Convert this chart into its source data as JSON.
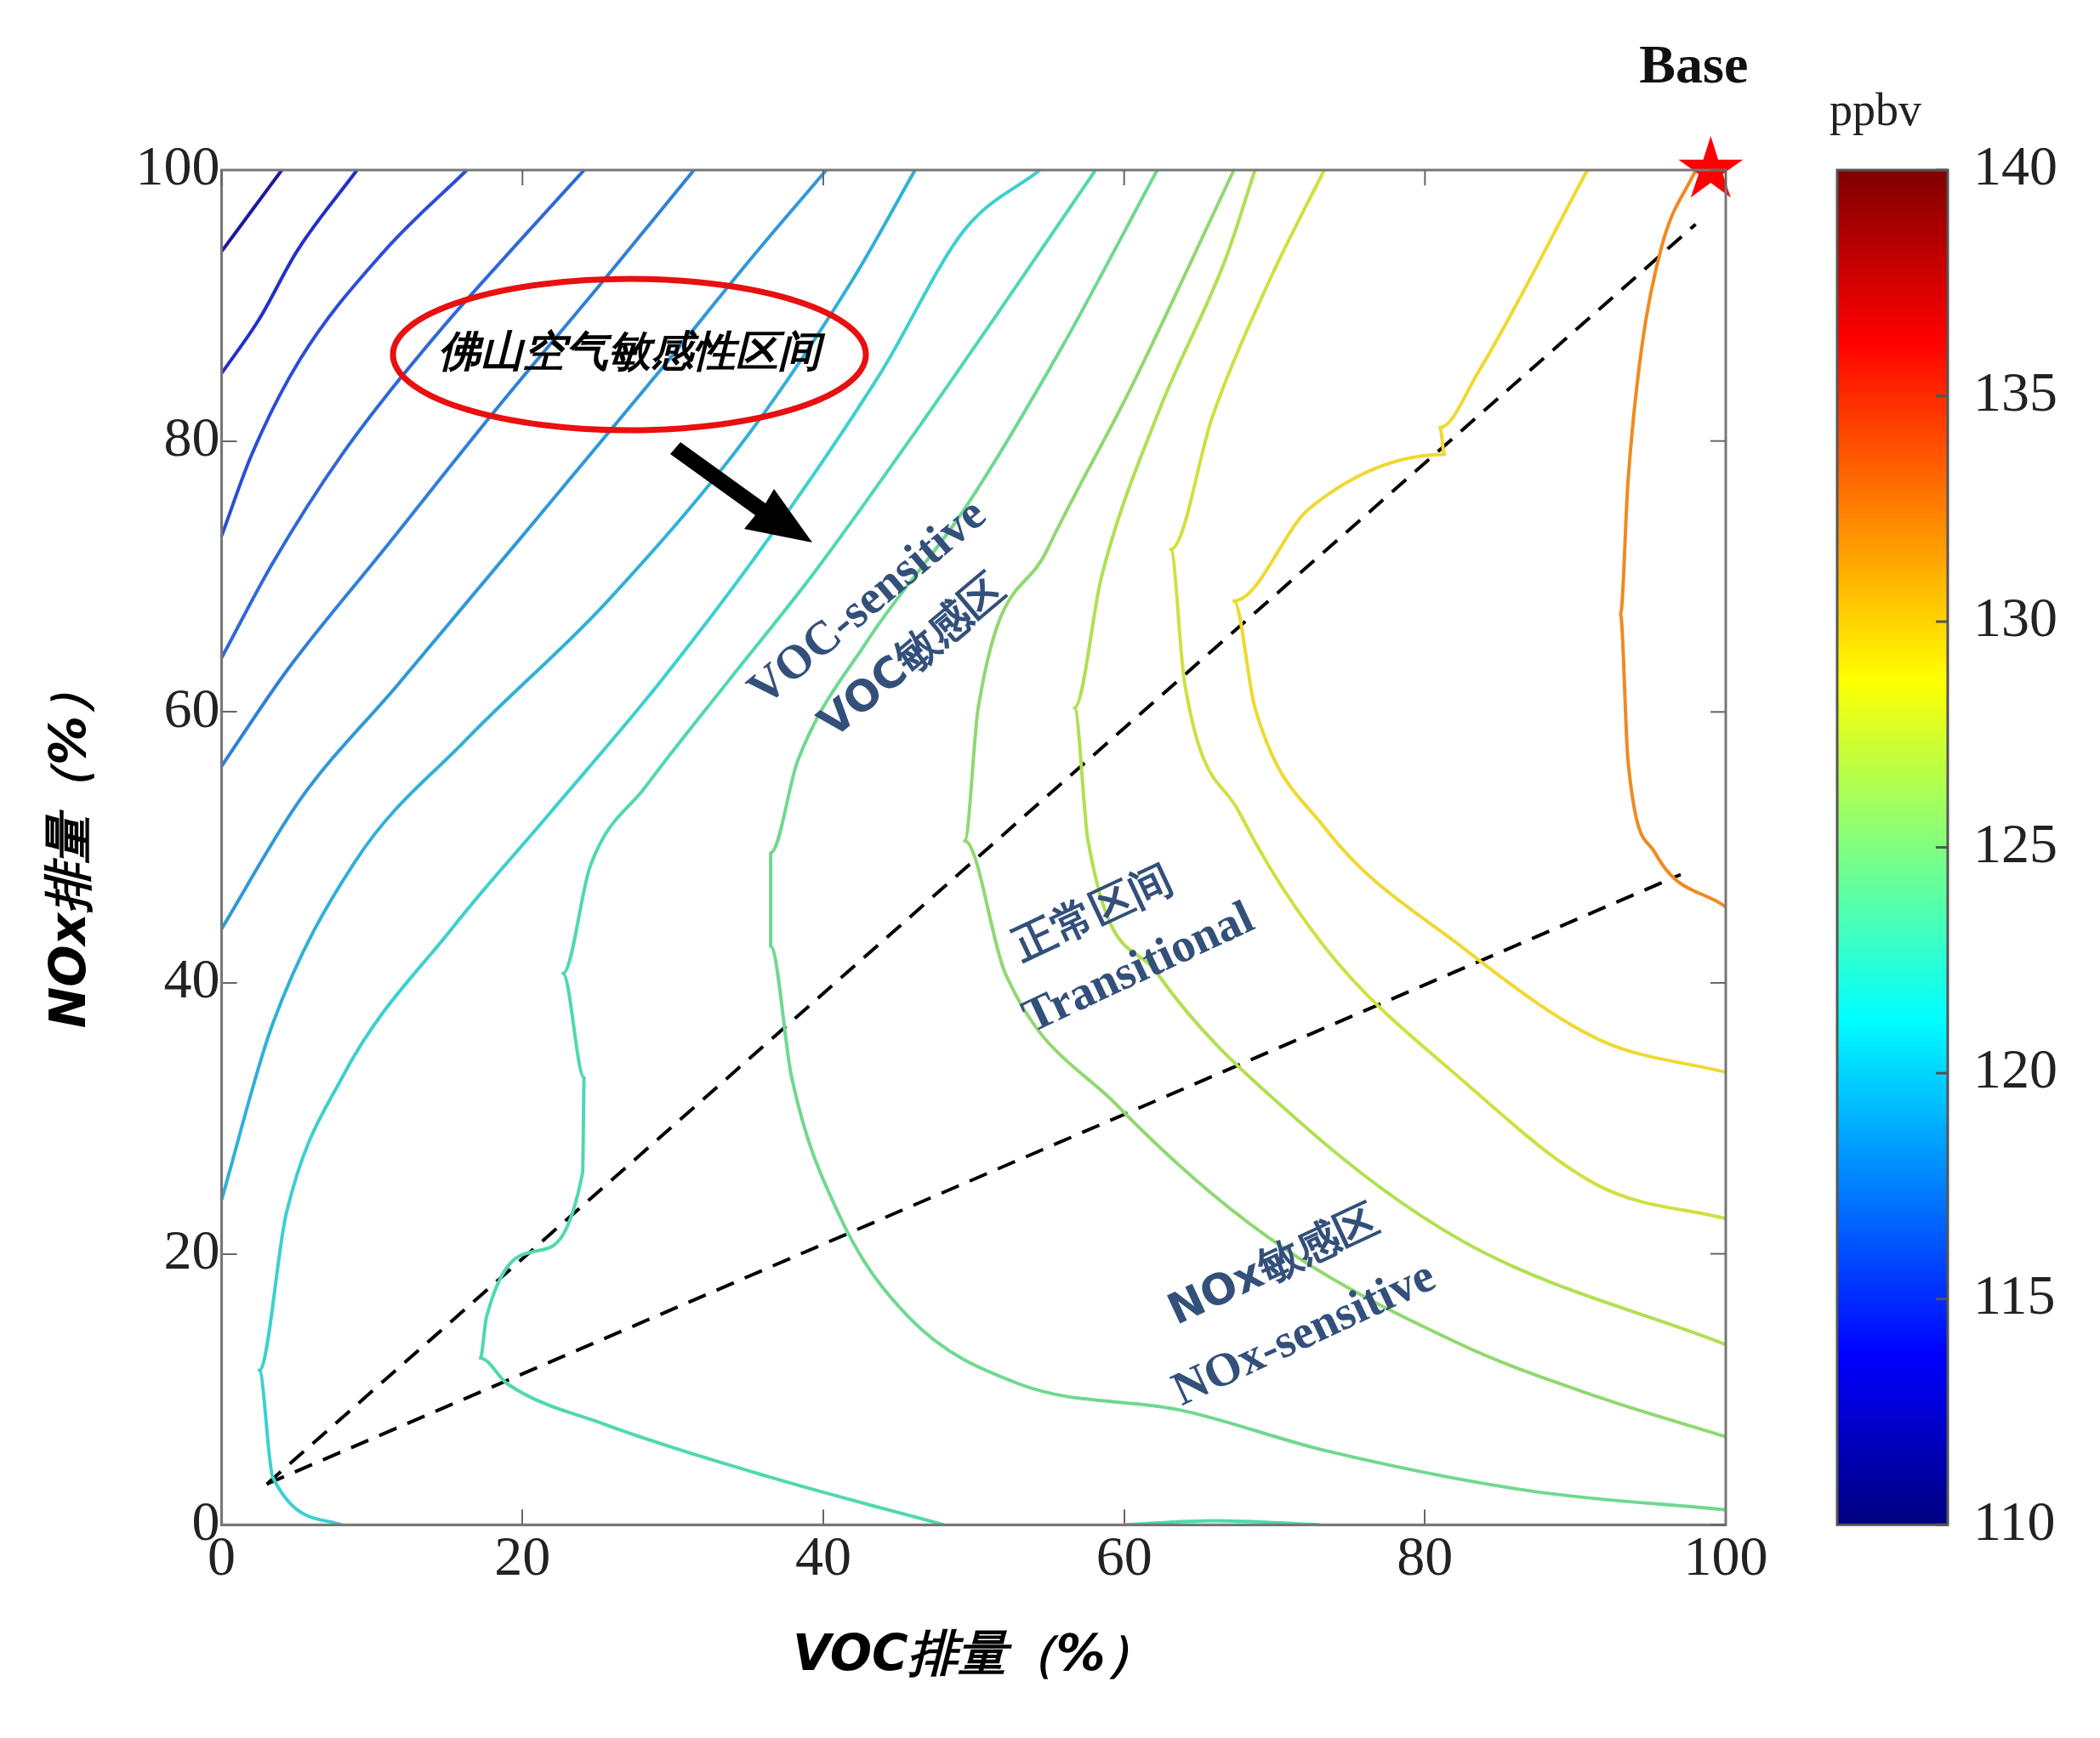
{
  "chart_data": {
    "type": "line",
    "xlabel": "VOC排量（%）",
    "ylabel": "NOx排量（%）",
    "xlim": [
      0,
      100
    ],
    "ylim": [
      0,
      100
    ],
    "xticks": [
      0,
      20,
      40,
      60,
      80,
      100
    ],
    "yticks": [
      0,
      20,
      40,
      60,
      80,
      100
    ],
    "grid": false,
    "legend": false,
    "marker": "none",
    "clim": [
      110,
      140
    ],
    "cticks": [
      110,
      115,
      120,
      125,
      130,
      135,
      140
    ],
    "clabel": "ppbv",
    "annotations": [
      {
        "text": "Base",
        "x": 99,
        "y": 100
      },
      "佛山空气敏感性区间",
      "VOC-sensitive",
      "VOC敏感区",
      "正常区间",
      "Transitional",
      "NOx敏感区",
      "NOx-sensitive"
    ],
    "series": [
      {
        "color": "#1a1aa0",
        "x": [
          0,
          2,
          4
        ],
        "values": [
          94,
          97,
          100
        ]
      },
      {
        "color": "#2230c8",
        "x": [
          0,
          2.5,
          5,
          9
        ],
        "values": [
          85,
          89,
          94,
          100
        ]
      },
      {
        "color": "#2a4ed8",
        "x": [
          0,
          2,
          5.2,
          10.8,
          16.3
        ],
        "values": [
          73,
          79,
          86,
          94,
          100
        ]
      },
      {
        "color": "#2f68d8",
        "x": [
          0,
          3.4,
          8,
          14.4,
          20,
          24.1
        ],
        "values": [
          64,
          71,
          79,
          88,
          95,
          100
        ]
      },
      {
        "color": "#3080d8",
        "x": [
          0,
          4.3,
          10.8,
          18,
          25.5,
          31.4
        ],
        "values": [
          56,
          63,
          72,
          82,
          92,
          100
        ]
      },
      {
        "color": "#3098d8",
        "x": [
          0,
          5.2,
          11.7,
          20,
          29,
          35.6,
          40.2
        ],
        "values": [
          44,
          53.5,
          62,
          73,
          85,
          94,
          100
        ]
      },
      {
        "color": "#30b0d8",
        "x": [
          0,
          3.4,
          8.9,
          16.3,
          25.5,
          34.7,
          42,
          46.1
        ],
        "values": [
          24,
          37,
          49,
          58,
          68,
          80,
          92,
          100
        ]
      },
      {
        "color": "#3cd0d0",
        "x": [
          8,
          3.4,
          2.5,
          4.3,
          8,
          15.3,
          21.8,
          29,
          36.5,
          43.8,
          49.4,
          54.4
        ],
        "values": [
          0,
          3.5,
          11.4,
          23,
          33,
          44,
          52.5,
          62,
          73,
          85,
          95.6,
          100
        ]
      },
      {
        "color": "#50d8b0",
        "x": [
          48,
          36.5,
          25.5,
          19,
          17.2,
          17.6,
          20.9,
          24,
          24.1,
          22.7,
          24.5,
          28.2,
          33.7,
          39.2,
          45.7,
          53,
          58.1
        ],
        "values": [
          0,
          3.5,
          7.4,
          10.4,
          12.3,
          15.3,
          20.2,
          26,
          33,
          40.7,
          48.6,
          54.5,
          62.3,
          70,
          80,
          91.7,
          100
        ]
      },
      {
        "color": "#70d890",
        "x": [
          100,
          87,
          73.3,
          64,
          53,
          45.7,
          41,
          37.9,
          36.5,
          36.5,
          38.3,
          42.9,
          49.4,
          55.8,
          62.2
        ],
        "values": [
          1.1,
          2.5,
          5.5,
          8.4,
          10.4,
          15.3,
          23,
          33,
          42.7,
          49.6,
          56.4,
          65.2,
          75,
          86.8,
          100
        ]
      },
      {
        "color": "#90d870",
        "x": [
          100,
          91.6,
          82.4,
          69.6,
          59.5,
          52.1,
          49.4,
          50.3,
          54.9,
          60.4,
          67.3
        ],
        "values": [
          6.5,
          9.4,
          13.3,
          21.2,
          31,
          40.7,
          50.5,
          60.3,
          72,
          83.8,
          100
        ]
      },
      {
        "color": "#b0e050",
        "x": [
          100,
          82.4,
          71.4,
          62.2,
          57.6,
          56.7,
          58.5,
          62.2,
          66.8,
          68.7
        ],
        "values": [
          13.3,
          21,
          30,
          40.7,
          50.5,
          60.3,
          70,
          81.9,
          93.6,
          100
        ]
      },
      {
        "color": "#d0e040",
        "x": [
          100,
          91.6,
          82.4,
          73.3,
          67.7,
          64,
          63.1,
          65.9,
          69.6,
          73.3
        ],
        "values": [
          22.6,
          25,
          32.9,
          42.7,
          52.5,
          62.3,
          72,
          81.9,
          91.7,
          100
        ]
      },
      {
        "color": "#f0d830",
        "x": [
          100,
          91.6,
          82.4,
          73.3,
          68.7,
          67.3,
          72.3,
          81.3,
          81,
          83.5,
          90.8
        ],
        "values": [
          33.4,
          35.8,
          42.7,
          51.5,
          60.3,
          68.2,
          75,
          79,
          81,
          85,
          100
        ]
      },
      {
        "color": "#f08a20",
        "x": [
          100,
          95.3,
          93.5,
          93,
          93.5,
          94.4,
          95.8,
          98
        ],
        "values": [
          45.6,
          49.6,
          56.4,
          67.2,
          77,
          86.8,
          94.6,
          100
        ]
      },
      {
        "color": "#50d8b0",
        "x": [
          60,
          66,
          73
        ],
        "values": [
          0,
          0.3,
          0
        ]
      },
      {
        "color": "#000000",
        "line_style": "dashed",
        "x": [
          3,
          98
        ],
        "values": [
          3,
          96
        ]
      },
      {
        "color": "#000000",
        "line_style": "dashed",
        "x": [
          3,
          97
        ],
        "values": [
          3,
          48
        ]
      },
      {
        "type": "scatter",
        "marker": "star",
        "color": "#ff0000",
        "x": [
          99
        ],
        "values": [
          100
        ]
      }
    ]
  }
}
